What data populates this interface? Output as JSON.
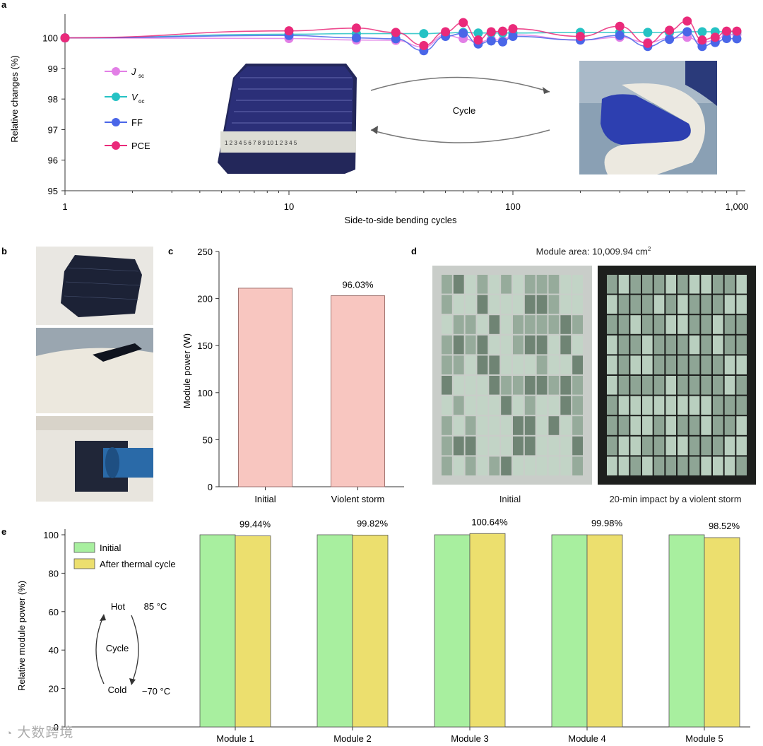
{
  "panel_labels": {
    "a": "a",
    "b": "b",
    "c": "c",
    "d": "d",
    "e": "e"
  },
  "colors": {
    "jsc": "#e27fe6",
    "voc": "#25c2c4",
    "ff": "#4a66e8",
    "pce": "#ea2a7a",
    "bar_c": "#f8c6c0",
    "bar_c_edge": "#9a6a66",
    "initial": "#a8ef9f",
    "after": "#ecdf6e"
  },
  "watermark": "大数跨境",
  "chart_data": [
    {
      "id": "a",
      "type": "line",
      "xscale": "log",
      "xlabel": "Side-to-side bending cycles",
      "ylabel": "Relative changes (%)",
      "xlim": [
        1,
        1000
      ],
      "ylim": [
        95,
        100.5
      ],
      "xticks": [
        1,
        10,
        100,
        1000
      ],
      "xtick_labels": [
        "1",
        "10",
        "100",
        "1,000"
      ],
      "yticks": [
        95,
        96,
        97,
        98,
        99,
        100
      ],
      "ytick_labels": [
        "95",
        "96",
        "97",
        "98",
        "99",
        "100"
      ],
      "x": [
        1,
        10,
        20,
        30,
        40,
        50,
        60,
        70,
        80,
        90,
        100,
        200,
        300,
        400,
        500,
        600,
        700,
        800,
        900,
        1000
      ],
      "series": [
        {
          "key": "jsc",
          "name_main": "J",
          "name_sub": "sc",
          "values": [
            100,
            99.98,
            99.93,
            99.92,
            99.7,
            100.1,
            99.98,
            99.85,
            99.95,
            99.92,
            100.1,
            99.93,
            100.02,
            99.85,
            99.99,
            100.02,
            99.85,
            99.92,
            100.1,
            100.12
          ]
        },
        {
          "key": "voc",
          "name_main": "V",
          "name_sub": "oc",
          "values": [
            100,
            100.12,
            100.14,
            100.14,
            100.14,
            100.16,
            100.18,
            100.16,
            100.16,
            100.16,
            100.16,
            100.18,
            100.18,
            100.18,
            100.18,
            100.2,
            100.2,
            100.2,
            100.2,
            100.2
          ]
        },
        {
          "key": "ff",
          "name_main": "FF",
          "name_sub": "",
          "values": [
            100,
            100.08,
            100.0,
            99.97,
            99.58,
            100.05,
            100.15,
            99.8,
            99.9,
            99.87,
            100.05,
            99.93,
            100.08,
            99.72,
            99.95,
            100.2,
            99.72,
            99.85,
            99.98,
            99.97
          ]
        },
        {
          "key": "pce",
          "name_main": "PCE",
          "name_sub": "",
          "values": [
            100,
            100.23,
            100.32,
            100.18,
            99.75,
            100.2,
            100.5,
            99.93,
            100.2,
            100.22,
            100.3,
            100.05,
            100.38,
            99.82,
            100.25,
            100.55,
            99.93,
            100.02,
            100.22,
            100.22
          ]
        }
      ],
      "inset": {
        "cycle_label": "Cycle",
        "ruler_text": "1 2 3 4 5 6 7 8 9 10 1 2 3 4 5"
      }
    },
    {
      "id": "c",
      "type": "bar",
      "ylabel": "Module power (W)",
      "ylim": [
        0,
        250
      ],
      "yticks": [
        0,
        50,
        100,
        150,
        200,
        250
      ],
      "ytick_labels": [
        "0",
        "50",
        "100",
        "150",
        "200",
        "250"
      ],
      "categories": [
        "Initial",
        "Violent storm"
      ],
      "values": [
        211,
        203
      ],
      "data_labels": [
        "",
        "96.03%"
      ]
    },
    {
      "id": "e",
      "type": "bar",
      "ylabel": "Relative module power (%)",
      "ylim": [
        0,
        100
      ],
      "yticks": [
        0,
        20,
        40,
        60,
        80,
        100
      ],
      "ytick_labels": [
        "0",
        "20",
        "40",
        "60",
        "80",
        "100"
      ],
      "categories": [
        "Module 1",
        "Module 2",
        "Module 3",
        "Module 4",
        "Module 5"
      ],
      "series": [
        {
          "key": "initial",
          "name": "Initial",
          "values": [
            100,
            100,
            100,
            100,
            100
          ]
        },
        {
          "key": "after",
          "name": "After thermal cycle",
          "values": [
            99.44,
            99.82,
            100.64,
            99.98,
            98.52
          ]
        }
      ],
      "data_labels": [
        "99.44%",
        "99.82%",
        "100.64%",
        "99.98%",
        "98.52%"
      ],
      "inset": {
        "hot": "Hot",
        "hot_temp": "85 °C",
        "cycle": "Cycle",
        "cold": "Cold",
        "cold_temp": "−70 °C"
      }
    }
  ],
  "panel_d": {
    "title_prefix": "Module area: 10,009.94 cm",
    "title_sup": "2",
    "left_caption": "Initial",
    "right_caption": "20-min impact by a violent storm"
  }
}
